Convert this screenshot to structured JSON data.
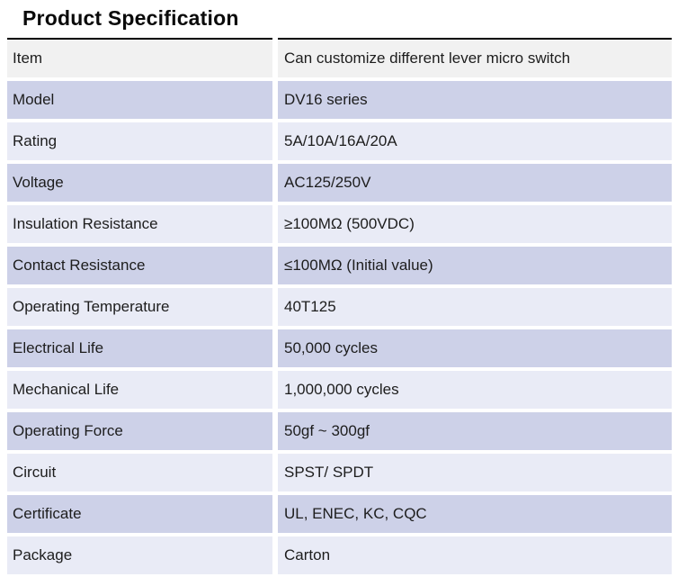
{
  "page": {
    "title": "Product Specification"
  },
  "table": {
    "header": {
      "item": "Item",
      "value": "Can customize different lever micro switch"
    },
    "rows": [
      {
        "label": "Model",
        "value": "DV16 series"
      },
      {
        "label": "Rating",
        "value": "5A/10A/16A/20A"
      },
      {
        "label": "Voltage",
        "value": "AC125/250V"
      },
      {
        "label": "Insulation Resistance",
        "value": "≥100MΩ (500VDC)"
      },
      {
        "label": "Contact Resistance",
        "value": "≤100MΩ (Initial value)"
      },
      {
        "label": "Operating Temperature",
        "value": "40T125"
      },
      {
        "label": "Electrical Life",
        "value": "50,000 cycles"
      },
      {
        "label": "Mechanical Life",
        "value": "1,000,000 cycles"
      },
      {
        "label": "Operating Force",
        "value": "50gf ~ 300gf"
      },
      {
        "label": "Circuit",
        "value": "SPST/ SPDT"
      },
      {
        "label": "Certificate",
        "value": "UL, ENEC, KC, CQC"
      },
      {
        "label": "Package",
        "value": "Carton"
      }
    ],
    "colors": {
      "header_bg": "#f1f1f1",
      "row_dark_bg": "#cdd1e8",
      "row_light_bg": "#e9ebf6",
      "border": "#000000",
      "text": "#1d1d1d"
    }
  }
}
